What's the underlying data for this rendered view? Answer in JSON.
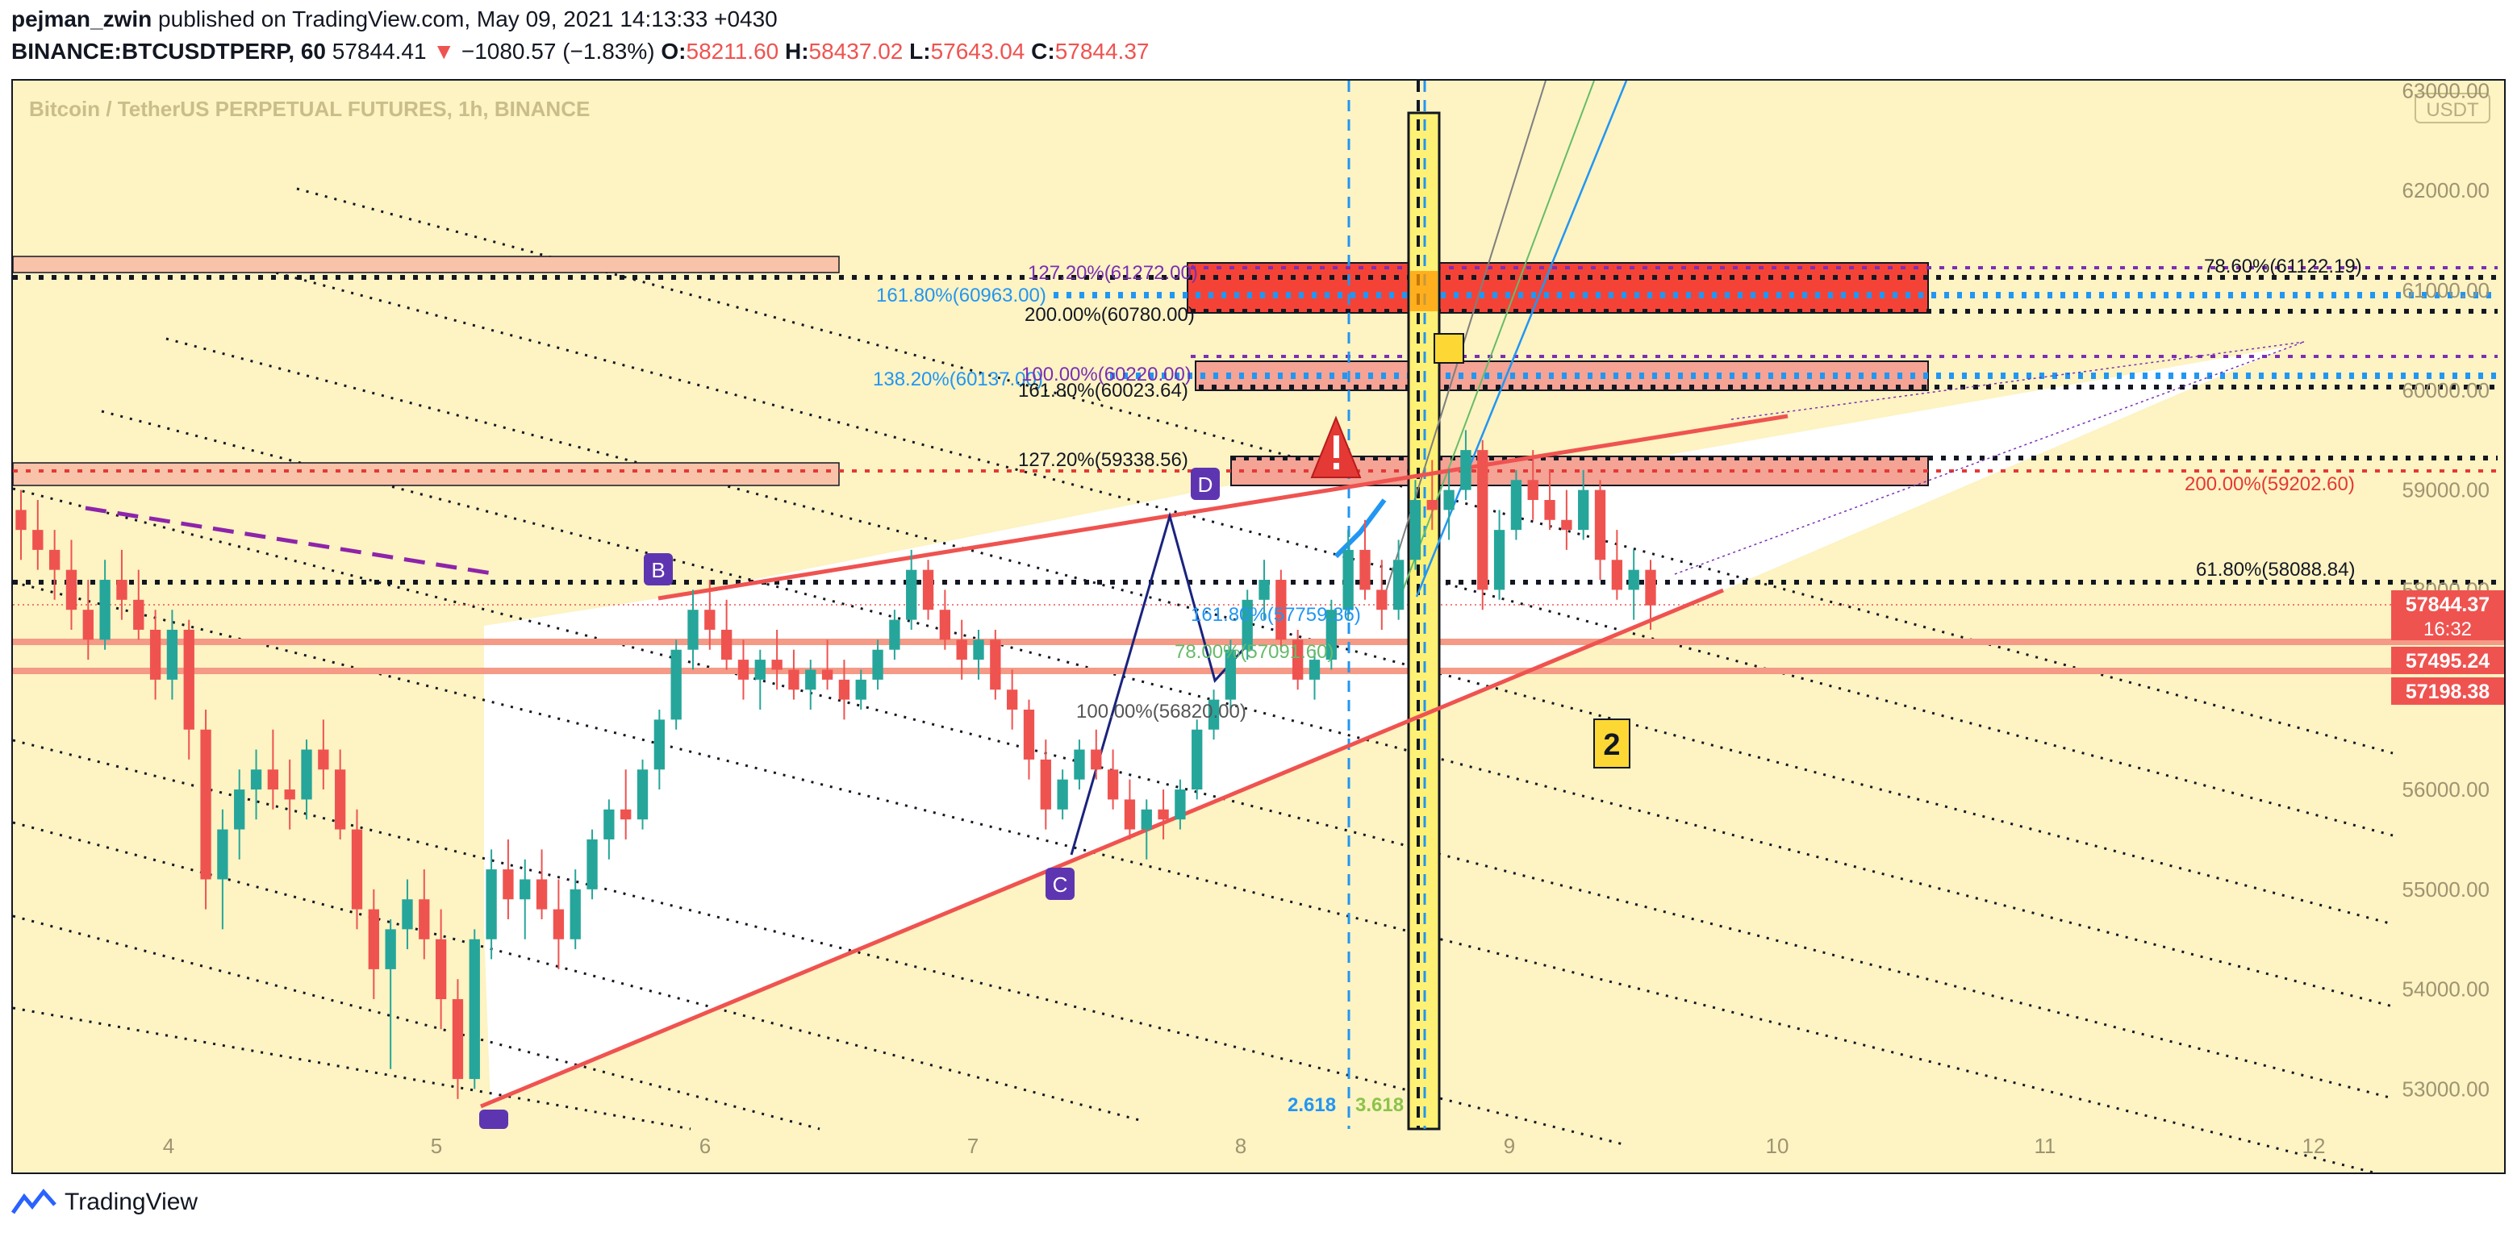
{
  "header": {
    "author": "pejman_zwin",
    "published_text": "published on TradingView.com, May 09, 2021 14:13:33 +0430",
    "symbol": "BINANCE:BTCUSDTPERP, 60",
    "last": "57844.41",
    "arrow": "▼",
    "change": "−1080.57 (−1.83%)",
    "o_label": "O:",
    "o": "58211.60",
    "h_label": "H:",
    "h": "58437.02",
    "l_label": "L:",
    "l": "57643.04",
    "c_label": "C:",
    "c": "57844.37"
  },
  "chart": {
    "title": "Bitcoin / TetherUS PERPETUAL FUTURES, 1h, BINANCE",
    "currency": "USDT",
    "colors": {
      "up": "#26a69a",
      "down": "#ef5350",
      "bg": "#fdf3c3",
      "zone": "#f8b9a2",
      "redbox": "#f44336"
    }
  },
  "chart_data": {
    "type": "candlestick",
    "y_ticks": [
      "63000.00",
      "62000.00",
      "61000.00",
      "60000.00",
      "59000.00",
      "58000.00",
      "57000.00",
      "56000.00",
      "55000.00",
      "54000.00",
      "53000.00"
    ],
    "x_ticks": [
      "4",
      "5",
      "6",
      "7",
      "8",
      "9",
      "10",
      "11",
      "12"
    ],
    "ylim": [
      52600,
      63100
    ],
    "price_labels": [
      {
        "value": "57844.37",
        "sub": "16:32"
      },
      {
        "value": "57495.24"
      },
      {
        "value": "57198.38"
      }
    ],
    "fib_labels": [
      "127.20%(61272.00)",
      "161.80%(60963.00)",
      "200.00%(60780.00)",
      "138.20%(60137.00)",
      "100.00%(60220.00)",
      "161.80%(60023.64)",
      "127.20%(59338.56)",
      "78.60%(61122.19)",
      "200.00%(59202.60)",
      "61.80%(58088.84)",
      "161.80%(57759.36)",
      "78.00%(57091.60)",
      "100.00%(56820.00)"
    ],
    "fib_extension_labels": [
      "2.618",
      "3.618"
    ],
    "pattern_points": [
      "B",
      "C",
      "D"
    ],
    "wave_label": "2",
    "candles": [
      [
        58800,
        59000,
        58300,
        58600
      ],
      [
        58600,
        58900,
        58200,
        58400
      ],
      [
        58400,
        58600,
        57900,
        58200
      ],
      [
        58200,
        58500,
        57600,
        57800
      ],
      [
        57800,
        58100,
        57300,
        57500
      ],
      [
        57500,
        58300,
        57400,
        58100
      ],
      [
        58100,
        58400,
        57700,
        57900
      ],
      [
        57900,
        58200,
        57500,
        57600
      ],
      [
        57600,
        57800,
        56900,
        57100
      ],
      [
        57100,
        57800,
        56900,
        57600
      ],
      [
        57600,
        57700,
        56300,
        56600
      ],
      [
        56600,
        56800,
        54800,
        55100
      ],
      [
        55100,
        55800,
        54600,
        55600
      ],
      [
        55600,
        56200,
        55300,
        56000
      ],
      [
        56000,
        56400,
        55700,
        56200
      ],
      [
        56200,
        56600,
        55800,
        56000
      ],
      [
        56000,
        56300,
        55600,
        55900
      ],
      [
        55900,
        56500,
        55700,
        56400
      ],
      [
        56400,
        56700,
        56000,
        56200
      ],
      [
        56200,
        56400,
        55500,
        55600
      ],
      [
        55600,
        55800,
        54600,
        54800
      ],
      [
        54800,
        55000,
        53900,
        54200
      ],
      [
        54200,
        54700,
        53200,
        54600
      ],
      [
        54600,
        55100,
        54400,
        54900
      ],
      [
        54900,
        55200,
        54300,
        54500
      ],
      [
        54500,
        54800,
        53600,
        53900
      ],
      [
        53900,
        54100,
        52900,
        53100
      ],
      [
        53100,
        54600,
        53000,
        54500
      ],
      [
        54500,
        55400,
        54300,
        55200
      ],
      [
        55200,
        55500,
        54700,
        54900
      ],
      [
        54900,
        55300,
        54500,
        55100
      ],
      [
        55100,
        55400,
        54700,
        54800
      ],
      [
        54800,
        55100,
        54200,
        54500
      ],
      [
        54500,
        55200,
        54400,
        55000
      ],
      [
        55000,
        55600,
        54900,
        55500
      ],
      [
        55500,
        55900,
        55300,
        55800
      ],
      [
        55800,
        56200,
        55500,
        55700
      ],
      [
        55700,
        56300,
        55600,
        56200
      ],
      [
        56200,
        56800,
        56000,
        56700
      ],
      [
        56700,
        57500,
        56600,
        57400
      ],
      [
        57400,
        58000,
        57200,
        57800
      ],
      [
        57800,
        58100,
        57400,
        57600
      ],
      [
        57600,
        57900,
        57200,
        57300
      ],
      [
        57300,
        57500,
        56900,
        57100
      ],
      [
        57100,
        57400,
        56800,
        57300
      ],
      [
        57300,
        57600,
        57000,
        57200
      ],
      [
        57200,
        57400,
        56900,
        57000
      ],
      [
        57000,
        57300,
        56800,
        57200
      ],
      [
        57200,
        57500,
        57000,
        57100
      ],
      [
        57100,
        57300,
        56700,
        56900
      ],
      [
        56900,
        57200,
        56800,
        57100
      ],
      [
        57100,
        57500,
        57000,
        57400
      ],
      [
        57400,
        57800,
        57300,
        57700
      ],
      [
        57700,
        58400,
        57600,
        58200
      ],
      [
        58200,
        58300,
        57700,
        57800
      ],
      [
        57800,
        58000,
        57400,
        57500
      ],
      [
        57500,
        57700,
        57100,
        57300
      ],
      [
        57300,
        57600,
        57100,
        57500
      ],
      [
        57500,
        57600,
        56900,
        57000
      ],
      [
        57000,
        57200,
        56600,
        56800
      ],
      [
        56800,
        56900,
        56100,
        56300
      ],
      [
        56300,
        56500,
        55600,
        55800
      ],
      [
        55800,
        56200,
        55700,
        56100
      ],
      [
        56100,
        56500,
        56000,
        56400
      ],
      [
        56400,
        56600,
        56100,
        56200
      ],
      [
        56200,
        56400,
        55800,
        55900
      ],
      [
        55900,
        56100,
        55500,
        55600
      ],
      [
        55600,
        55900,
        55300,
        55800
      ],
      [
        55800,
        56000,
        55500,
        55700
      ],
      [
        55700,
        56100,
        55600,
        56000
      ],
      [
        56000,
        56700,
        55900,
        56600
      ],
      [
        56600,
        57000,
        56500,
        56900
      ],
      [
        56900,
        57500,
        56800,
        57400
      ],
      [
        57400,
        58000,
        57300,
        57900
      ],
      [
        57900,
        58300,
        57700,
        58100
      ],
      [
        58100,
        58200,
        57400,
        57500
      ],
      [
        57500,
        57600,
        57000,
        57100
      ],
      [
        57100,
        57400,
        56900,
        57300
      ],
      [
        57300,
        57900,
        57200,
        57800
      ],
      [
        57800,
        58600,
        57700,
        58400
      ],
      [
        58400,
        58700,
        57900,
        58000
      ],
      [
        58000,
        58300,
        57600,
        57800
      ],
      [
        57800,
        58500,
        57700,
        58300
      ],
      [
        58300,
        59100,
        58200,
        58900
      ],
      [
        58900,
        59300,
        58600,
        58800
      ],
      [
        58800,
        59200,
        58500,
        59000
      ],
      [
        59000,
        59600,
        58900,
        59400
      ],
      [
        59400,
        59500,
        57800,
        58000
      ],
      [
        58000,
        58800,
        57900,
        58600
      ],
      [
        58600,
        59200,
        58500,
        59100
      ],
      [
        59100,
        59400,
        58700,
        58900
      ],
      [
        58900,
        59200,
        58600,
        58700
      ],
      [
        58700,
        59000,
        58400,
        58600
      ],
      [
        58600,
        59200,
        58500,
        59000
      ],
      [
        59000,
        59100,
        58100,
        58300
      ],
      [
        58300,
        58600,
        57900,
        58000
      ],
      [
        58000,
        58400,
        57700,
        58200
      ],
      [
        58200,
        58300,
        57600,
        57844
      ]
    ]
  }
}
